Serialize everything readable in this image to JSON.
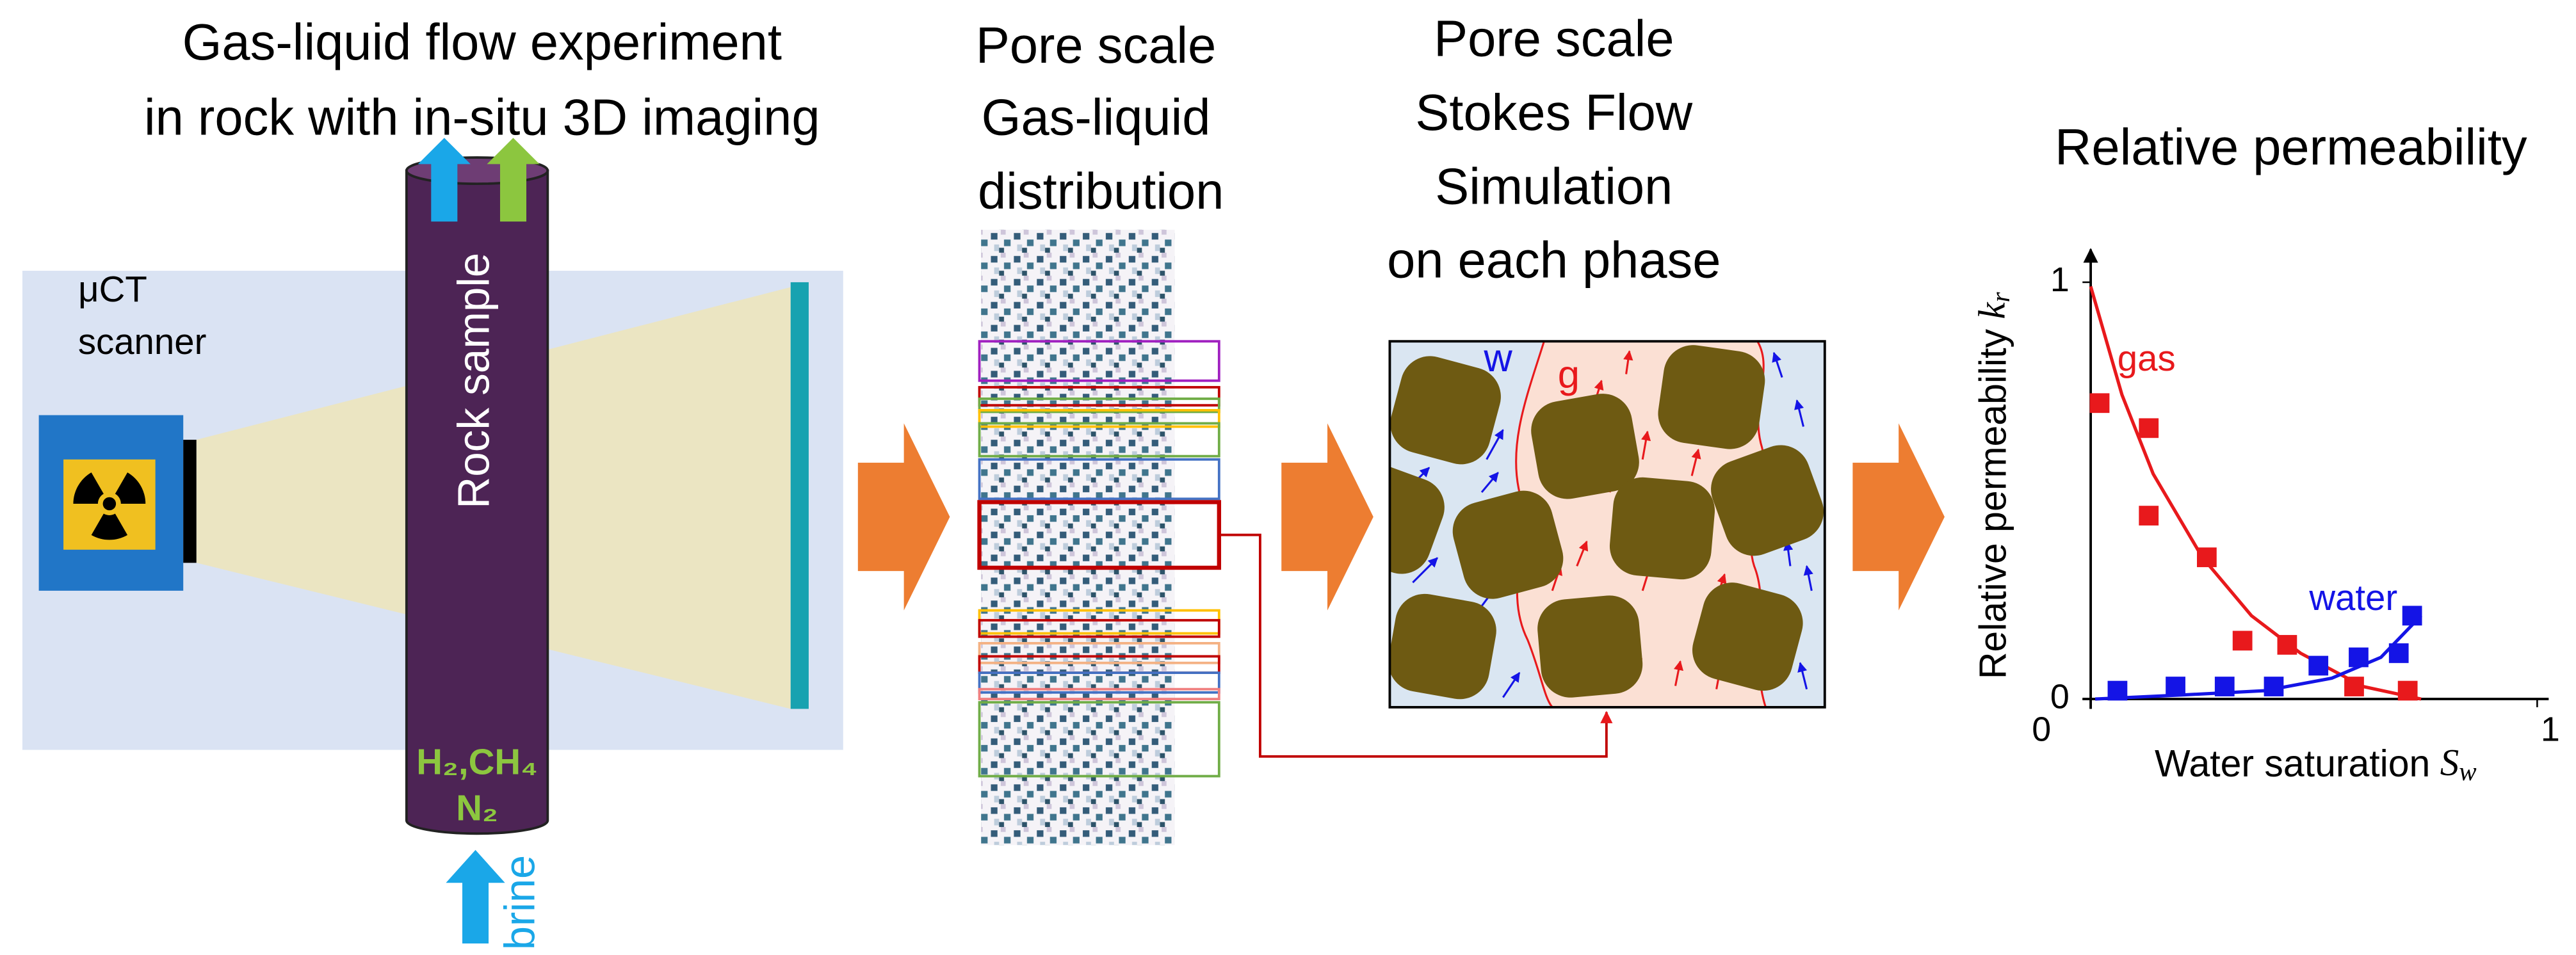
{
  "experiment": {
    "title": [
      "Gas-liquid flow experiment",
      "in rock with in-situ 3D imaging"
    ],
    "scanner_label": [
      "μCT",
      "scanner"
    ],
    "sample_label": "Rock sample",
    "gases": [
      "H₂,CH₄",
      "N₂"
    ],
    "inlet_label": "brine"
  },
  "distribution": {
    "title": [
      "Pore scale",
      "Gas-liquid",
      "distribution"
    ]
  },
  "simulation": {
    "title": [
      "Pore scale",
      "Stokes Flow",
      "Simulation",
      "on each phase"
    ],
    "water_label": "w",
    "gas_label": "g"
  },
  "relperm_chart": {
    "type": "scatter",
    "title": "Relative permeability",
    "x_label": "Water saturation",
    "x_symbol": "S",
    "x_subscript": "w",
    "y_label": "Relative permeability",
    "y_symbol": "k",
    "y_subscript": "r",
    "xlim": [
      0,
      1
    ],
    "ylim": [
      0,
      1
    ],
    "xticks": [
      0,
      1
    ],
    "yticks": [
      0,
      1
    ],
    "series": [
      {
        "name": "gas",
        "color": "#e8191c",
        "points": {
          "x": [
            0.02,
            0.13,
            0.13,
            0.26,
            0.34,
            0.44,
            0.59,
            0.71
          ],
          "y": [
            0.71,
            0.65,
            0.44,
            0.34,
            0.14,
            0.13,
            0.03,
            0.02
          ]
        },
        "fit": {
          "x": [
            0,
            0.07,
            0.14,
            0.25,
            0.36,
            0.47,
            0.61,
            0.74
          ],
          "y": [
            0.99,
            0.73,
            0.54,
            0.34,
            0.2,
            0.11,
            0.03,
            0
          ]
        }
      },
      {
        "name": "water",
        "color": "#1414e6",
        "points": {
          "x": [
            0.06,
            0.19,
            0.3,
            0.41,
            0.51,
            0.6,
            0.69,
            0.72
          ],
          "y": [
            0.02,
            0.03,
            0.03,
            0.03,
            0.08,
            0.1,
            0.11,
            0.2
          ]
        },
        "fit": {
          "x": [
            0.01,
            0.21,
            0.39,
            0.54,
            0.65,
            0.74
          ],
          "y": [
            0,
            0.01,
            0.02,
            0.05,
            0.1,
            0.2
          ]
        }
      }
    ]
  }
}
